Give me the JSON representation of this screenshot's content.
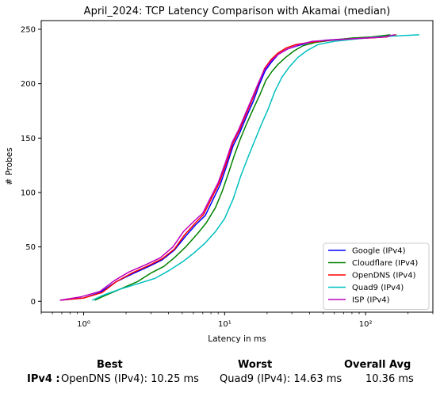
{
  "chart_data": {
    "type": "line",
    "title": "April_2024: TCP Latency Comparison with Akamai (median)",
    "xlabel": "Latency in ms",
    "ylabel": "# Probes",
    "xscale": "log",
    "xlim": [
      0.5,
      300
    ],
    "ylim": [
      -10,
      258
    ],
    "x_ticks": [
      1,
      10,
      100
    ],
    "x_tick_labels": [
      "10⁰",
      "10¹",
      "10²"
    ],
    "y_ticks": [
      0,
      50,
      100,
      150,
      200,
      250
    ],
    "grid": false,
    "legend_position": "lower-right",
    "series": [
      {
        "name": "Google (IPv4)",
        "color": "#0000ff",
        "x": [
          0.68,
          1.0,
          1.3,
          1.7,
          2.2,
          2.9,
          3.6,
          4.4,
          5.3,
          6.2,
          7.3,
          8.3,
          9.3,
          10.3,
          11.5,
          12.8,
          14.3,
          16.0,
          17.6,
          19.4,
          21.5,
          24.0,
          28.0,
          33.0,
          40.0,
          52.0,
          70.0,
          100.0,
          140.0,
          165.0
        ],
        "y": [
          1,
          3,
          8,
          18,
          25,
          32,
          38,
          47,
          60,
          70,
          79,
          94,
          107,
          124,
          143,
          155,
          170,
          184,
          199,
          212,
          220,
          227,
          232,
          235,
          238,
          240,
          241,
          242,
          243,
          245
        ]
      },
      {
        "name": "Cloudflare (IPv4)",
        "color": "#008000",
        "x": [
          1.2,
          1.4,
          1.8,
          2.4,
          3.0,
          3.7,
          4.4,
          5.3,
          6.4,
          7.4,
          8.6,
          9.6,
          10.6,
          11.7,
          12.9,
          14.3,
          16.0,
          17.8,
          19.6,
          21.6,
          24.0,
          27.0,
          31.0,
          36.0,
          44.0,
          58.0,
          80.0,
          110.0,
          150.0
        ],
        "y": [
          1,
          5,
          11,
          18,
          26,
          32,
          40,
          50,
          62,
          72,
          86,
          101,
          117,
          134,
          149,
          163,
          177,
          190,
          203,
          211,
          218,
          224,
          230,
          235,
          238,
          240,
          242,
          243,
          245
        ]
      },
      {
        "name": "OpenDNS (IPv4)",
        "color": "#ff0000",
        "x": [
          0.68,
          1.0,
          1.35,
          1.7,
          2.2,
          2.9,
          3.6,
          4.4,
          5.2,
          6.1,
          7.1,
          8.1,
          9.1,
          10.2,
          11.4,
          12.7,
          14.2,
          15.9,
          17.5,
          19.2,
          21.3,
          23.8,
          27.5,
          32.0,
          40.0,
          55.0,
          75.0,
          105.0,
          140.0,
          165.0
        ],
        "y": [
          1,
          3,
          8,
          18,
          26,
          33,
          39,
          48,
          61,
          71,
          80,
          95,
          108,
          126,
          145,
          157,
          172,
          187,
          201,
          214,
          222,
          228,
          233,
          236,
          238,
          240,
          241,
          242,
          243,
          245
        ]
      },
      {
        "name": "Quad9 (IPv4)",
        "color": "#00bfbf",
        "x": [
          1.15,
          1.4,
          1.8,
          2.4,
          3.2,
          4.0,
          5.0,
          6.0,
          7.2,
          8.6,
          10.0,
          11.5,
          13.0,
          14.6,
          16.4,
          18.3,
          20.4,
          22.7,
          25.5,
          29.0,
          33.0,
          38.0,
          46.0,
          60.0,
          85.0,
          120.0,
          170.0,
          240.0
        ],
        "y": [
          1,
          6,
          11,
          16,
          21,
          28,
          36,
          44,
          53,
          64,
          76,
          94,
          115,
          132,
          148,
          163,
          177,
          193,
          206,
          216,
          224,
          230,
          236,
          239,
          241,
          243,
          244,
          245
        ]
      },
      {
        "name": "ISP (IPv4)",
        "color": "#bf00bf",
        "x": [
          0.68,
          0.95,
          1.3,
          1.65,
          2.1,
          2.8,
          3.5,
          4.3,
          5.1,
          6.0,
          7.0,
          8.0,
          9.0,
          10.1,
          11.3,
          12.6,
          14.1,
          15.8,
          17.4,
          19.2,
          21.4,
          24.0,
          28.0,
          34.0,
          42.0,
          56.0,
          75.0,
          100.0,
          135.0,
          160.0
        ],
        "y": [
          1,
          4,
          9,
          19,
          27,
          34,
          40,
          50,
          64,
          73,
          81,
          96,
          109,
          127,
          146,
          158,
          173,
          188,
          201,
          213,
          221,
          227,
          232,
          236,
          239,
          240,
          241,
          242,
          243,
          245
        ]
      }
    ]
  },
  "summary": {
    "best_header": "Best",
    "worst_header": "Worst",
    "avg_header": "Overall Avg",
    "row_label": "IPv4 :",
    "best_value": "OpenDNS (IPv4): 10.25 ms",
    "worst_value": "Quad9 (IPv4): 14.63 ms",
    "avg_value": "10.36 ms"
  }
}
